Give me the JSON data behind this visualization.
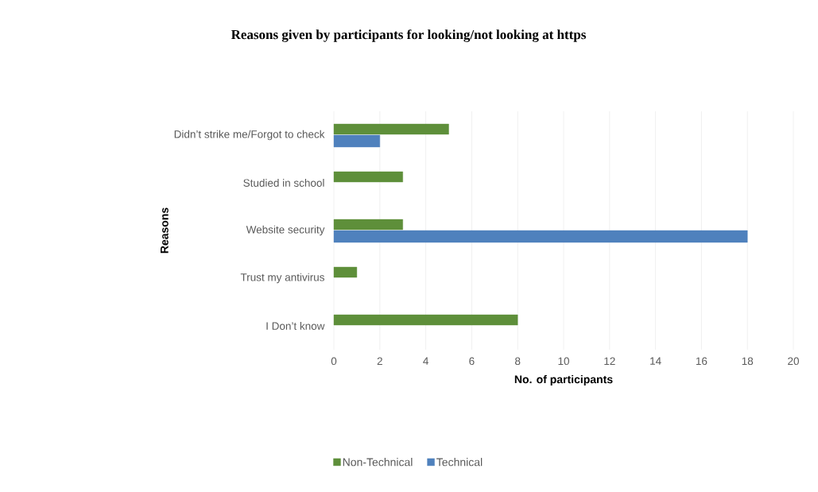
{
  "chart_data": {
    "type": "bar",
    "orientation": "horizontal",
    "title": "Reasons given by participants for looking/not looking at https",
    "xlabel": "No. of participants",
    "ylabel": "Reasons",
    "categories": [
      "Didn’t strike me/Forgot to check",
      "Studied in school",
      "Website security",
      "Trust my antivirus",
      "I Don’t know"
    ],
    "series": [
      {
        "name": "Non-Technical",
        "color": "#5e8f3a",
        "values": [
          5,
          3,
          3,
          1,
          8
        ]
      },
      {
        "name": "Technical",
        "color": "#4f81bd",
        "values": [
          2,
          null,
          18,
          null,
          null
        ]
      }
    ],
    "xlim": [
      0,
      20
    ],
    "xticks": [
      0,
      2,
      4,
      6,
      8,
      10,
      12,
      14,
      16,
      18,
      20
    ],
    "grid": "x",
    "legend": "bottom"
  }
}
